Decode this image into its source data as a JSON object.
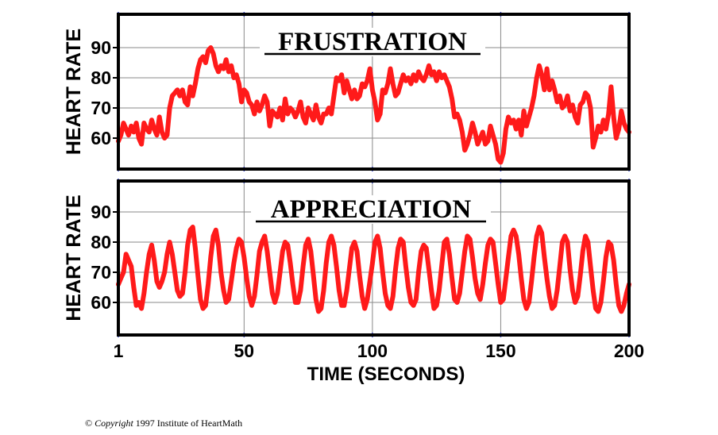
{
  "chart_data": [
    {
      "type": "line",
      "title": "FRUSTRATION",
      "ylabel": "HEART RATE",
      "xlabel": "",
      "xlim": [
        1,
        200
      ],
      "ylim": [
        50,
        100
      ],
      "x_ticks": [
        1,
        50,
        100,
        150,
        200
      ],
      "y_ticks": [
        60,
        70,
        80,
        90
      ],
      "grid": true,
      "series": [
        {
          "color": "#ff1a1a",
          "x": [
            1,
            2,
            3,
            4,
            5,
            6,
            7,
            8,
            9,
            10,
            11,
            12,
            13,
            14,
            15,
            16,
            17,
            18,
            19,
            20,
            21,
            22,
            23,
            24,
            25,
            26,
            27,
            28,
            29,
            30,
            31,
            32,
            33,
            34,
            35,
            36,
            37,
            38,
            39,
            40,
            41,
            42,
            43,
            44,
            45,
            46,
            47,
            48,
            49,
            50,
            51,
            52,
            53,
            54,
            55,
            56,
            57,
            58,
            59,
            60,
            61,
            62,
            63,
            64,
            65,
            66,
            67,
            68,
            69,
            70,
            71,
            72,
            73,
            74,
            75,
            76,
            77,
            78,
            79,
            80,
            81,
            82,
            83,
            84,
            85,
            86,
            87,
            88,
            89,
            90,
            91,
            92,
            93,
            94,
            95,
            96,
            97,
            98,
            99,
            100,
            101,
            102,
            103,
            104,
            105,
            106,
            107,
            108,
            109,
            110,
            111,
            112,
            113,
            114,
            115,
            116,
            117,
            118,
            119,
            120,
            121,
            122,
            123,
            124,
            125,
            126,
            127,
            128,
            129,
            130,
            131,
            132,
            133,
            134,
            135,
            136,
            137,
            138,
            139,
            140,
            141,
            142,
            143,
            144,
            145,
            146,
            147,
            148,
            149,
            150,
            151,
            152,
            153,
            154,
            155,
            156,
            157,
            158,
            159,
            160,
            161,
            162,
            163,
            164,
            165,
            166,
            167,
            168,
            169,
            170,
            171,
            172,
            173,
            174,
            175,
            176,
            177,
            178,
            179,
            180,
            181,
            182,
            183,
            184,
            185,
            186,
            187,
            188,
            189,
            190,
            191,
            192,
            193,
            194,
            195,
            196,
            197,
            198,
            199,
            200
          ],
          "y": [
            59,
            61,
            65,
            63,
            61,
            64,
            62,
            65,
            60,
            58,
            65,
            63,
            62,
            66,
            63,
            61,
            67,
            62,
            60,
            61,
            70,
            74,
            75,
            76,
            74,
            76,
            72,
            71,
            77,
            74,
            78,
            83,
            86,
            87,
            85,
            89,
            90,
            88,
            84,
            82,
            84,
            83,
            86,
            82,
            84,
            80,
            81,
            78,
            72,
            76,
            75,
            72,
            71,
            68,
            72,
            69,
            71,
            74,
            72,
            64,
            69,
            68,
            67,
            70,
            66,
            73,
            68,
            70,
            69,
            67,
            69,
            72,
            67,
            65,
            70,
            68,
            66,
            71,
            67,
            65,
            68,
            68,
            70,
            68,
            74,
            80,
            79,
            81,
            75,
            79,
            76,
            73,
            76,
            73,
            74,
            78,
            77,
            79,
            83,
            76,
            72,
            66,
            68,
            76,
            75,
            78,
            83,
            78,
            74,
            75,
            78,
            81,
            79,
            80,
            78,
            81,
            79,
            82,
            80,
            79,
            81,
            84,
            81,
            82,
            79,
            82,
            80,
            81,
            79,
            77,
            73,
            67,
            68,
            66,
            62,
            56,
            58,
            61,
            65,
            62,
            58,
            60,
            62,
            58,
            59,
            64,
            61,
            58,
            53,
            52,
            55,
            63,
            67,
            65,
            66,
            63,
            66,
            61,
            69,
            64,
            67,
            70,
            74,
            80,
            84,
            81,
            76,
            83,
            76,
            79,
            76,
            72,
            74,
            70,
            71,
            74,
            69,
            71,
            67,
            65,
            71,
            72,
            75,
            74,
            70,
            57,
            60,
            64,
            62,
            66,
            63,
            68,
            77,
            67,
            60,
            63,
            69,
            65,
            63,
            62
          ]
        }
      ]
    },
    {
      "type": "line",
      "title": "APPRECIATION",
      "ylabel": "HEART RATE",
      "xlabel": "TIME (SECONDS)",
      "xlim": [
        1,
        200
      ],
      "ylim": [
        50,
        100
      ],
      "x_ticks": [
        1,
        50,
        100,
        150,
        200
      ],
      "y_ticks": [
        60,
        70,
        80,
        90
      ],
      "grid": true,
      "series": [
        {
          "color": "#ff1a1a",
          "x": [
            1,
            2,
            3,
            4,
            5,
            6,
            7,
            8,
            9,
            10,
            11,
            12,
            13,
            14,
            15,
            16,
            17,
            18,
            19,
            20,
            21,
            22,
            23,
            24,
            25,
            26,
            27,
            28,
            29,
            30,
            31,
            32,
            33,
            34,
            35,
            36,
            37,
            38,
            39,
            40,
            41,
            42,
            43,
            44,
            45,
            46,
            47,
            48,
            49,
            50,
            51,
            52,
            53,
            54,
            55,
            56,
            57,
            58,
            59,
            60,
            61,
            62,
            63,
            64,
            65,
            66,
            67,
            68,
            69,
            70,
            71,
            72,
            73,
            74,
            75,
            76,
            77,
            78,
            79,
            80,
            81,
            82,
            83,
            84,
            85,
            86,
            87,
            88,
            89,
            90,
            91,
            92,
            93,
            94,
            95,
            96,
            97,
            98,
            99,
            100,
            101,
            102,
            103,
            104,
            105,
            106,
            107,
            108,
            109,
            110,
            111,
            112,
            113,
            114,
            115,
            116,
            117,
            118,
            119,
            120,
            121,
            122,
            123,
            124,
            125,
            126,
            127,
            128,
            129,
            130,
            131,
            132,
            133,
            134,
            135,
            136,
            137,
            138,
            139,
            140,
            141,
            142,
            143,
            144,
            145,
            146,
            147,
            148,
            149,
            150,
            151,
            152,
            153,
            154,
            155,
            156,
            157,
            158,
            159,
            160,
            161,
            162,
            163,
            164,
            165,
            166,
            167,
            168,
            169,
            170,
            171,
            172,
            173,
            174,
            175,
            176,
            177,
            178,
            179,
            180,
            181,
            182,
            183,
            184,
            185,
            186,
            187,
            188,
            189,
            190,
            191,
            192,
            193,
            194,
            195,
            196,
            197,
            198,
            199,
            200
          ],
          "y": [
            66,
            68,
            70,
            76,
            74,
            72,
            65,
            59,
            60,
            58,
            63,
            70,
            76,
            79,
            74,
            67,
            65,
            67,
            70,
            76,
            80,
            76,
            70,
            64,
            62,
            63,
            70,
            79,
            84,
            85,
            78,
            69,
            61,
            58,
            59,
            66,
            75,
            82,
            84,
            79,
            70,
            64,
            60,
            61,
            67,
            73,
            78,
            81,
            80,
            75,
            68,
            62,
            59,
            62,
            69,
            77,
            80,
            82,
            77,
            70,
            63,
            60,
            63,
            70,
            77,
            80,
            79,
            73,
            66,
            60,
            60,
            64,
            72,
            79,
            81,
            77,
            69,
            61,
            57,
            58,
            64,
            73,
            80,
            82,
            79,
            72,
            64,
            59,
            59,
            64,
            71,
            78,
            80,
            77,
            69,
            62,
            58,
            61,
            67,
            73,
            80,
            82,
            78,
            70,
            63,
            59,
            58,
            62,
            71,
            78,
            81,
            80,
            72,
            65,
            60,
            59,
            61,
            70,
            77,
            79,
            78,
            71,
            64,
            58,
            59,
            64,
            72,
            80,
            81,
            76,
            68,
            61,
            60,
            63,
            70,
            77,
            82,
            81,
            75,
            68,
            63,
            61,
            66,
            73,
            79,
            81,
            80,
            73,
            66,
            60,
            61,
            68,
            75,
            82,
            84,
            82,
            76,
            68,
            61,
            58,
            60,
            67,
            75,
            82,
            85,
            83,
            75,
            68,
            62,
            58,
            59,
            64,
            72,
            80,
            82,
            80,
            71,
            64,
            60,
            62,
            69,
            77,
            82,
            80,
            72,
            64,
            58,
            57,
            60,
            67,
            75,
            80,
            79,
            74,
            66,
            59,
            57,
            59,
            63,
            66
          ]
        }
      ]
    }
  ],
  "copyright": {
    "symbol": "©",
    "word": "Copyright",
    "text": "1997 Institute of HeartMath"
  }
}
